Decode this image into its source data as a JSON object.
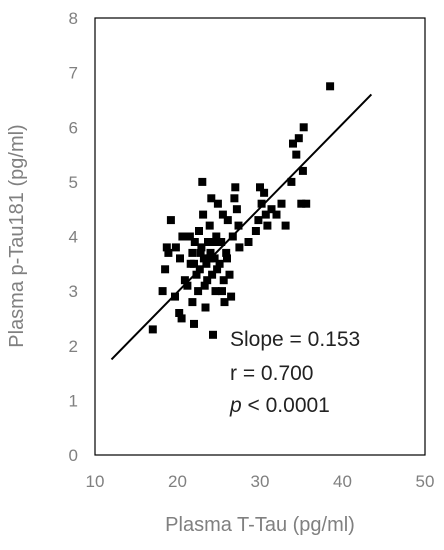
{
  "chart_data": {
    "type": "scatter",
    "title": "",
    "xlabel": "Plasma T-Tau (pg/ml)",
    "ylabel": "Plasma p-Tau181 (pg/ml)",
    "xlim": [
      10,
      50
    ],
    "ylim": [
      0,
      8
    ],
    "x_ticks": [
      "10",
      "20",
      "30",
      "40",
      "50"
    ],
    "y_ticks": [
      "0",
      "1",
      "2",
      "3",
      "4",
      "5",
      "6",
      "7",
      "8"
    ],
    "grid": false,
    "legend": "none",
    "colors": {
      "points": "#000000",
      "fit_line": "#000000",
      "axis_text": "#808080",
      "frame": "#000000"
    },
    "fit_line": {
      "x": [
        12,
        43.5
      ],
      "y": [
        1.75,
        6.6
      ],
      "slope": 0.153,
      "r": 0.7
    },
    "annotations": {
      "slope": "Slope = 0.153",
      "r": "r = 0.700",
      "p_symbol": "p",
      "p_rest": " < 0.0001"
    },
    "points": [
      [
        17,
        2.3
      ],
      [
        18.2,
        3.0
      ],
      [
        18.5,
        3.4
      ],
      [
        18.7,
        3.8
      ],
      [
        18.9,
        3.7
      ],
      [
        19.2,
        4.3
      ],
      [
        19.7,
        2.9
      ],
      [
        20.2,
        2.6
      ],
      [
        20.5,
        2.5
      ],
      [
        20.3,
        3.6
      ],
      [
        20.6,
        4.0
      ],
      [
        21.2,
        3.1
      ],
      [
        21.6,
        3.5
      ],
      [
        21.8,
        2.8
      ],
      [
        22.0,
        2.4
      ],
      [
        21.8,
        3.7
      ],
      [
        22.1,
        3.9
      ],
      [
        22.3,
        3.3
      ],
      [
        22.5,
        3.0
      ],
      [
        22.7,
        3.4
      ],
      [
        22.9,
        3.8
      ],
      [
        22.6,
        4.1
      ],
      [
        23.1,
        4.4
      ],
      [
        23.0,
        5.0
      ],
      [
        23.2,
        3.6
      ],
      [
        23.3,
        3.1
      ],
      [
        23.4,
        2.7
      ],
      [
        23.5,
        3.5
      ],
      [
        23.7,
        3.9
      ],
      [
        23.9,
        4.2
      ],
      [
        24.0,
        3.7
      ],
      [
        24.2,
        3.3
      ],
      [
        24.1,
        4.7
      ],
      [
        24.3,
        2.2
      ],
      [
        24.6,
        3.0
      ],
      [
        24.5,
        3.6
      ],
      [
        24.7,
        4.0
      ],
      [
        24.9,
        4.6
      ],
      [
        25.1,
        3.5
      ],
      [
        25.3,
        3.9
      ],
      [
        25.5,
        4.4
      ],
      [
        25.6,
        3.2
      ],
      [
        25.7,
        2.8
      ],
      [
        25.9,
        3.7
      ],
      [
        26.1,
        4.3
      ],
      [
        26.3,
        3.3
      ],
      [
        26.5,
        2.9
      ],
      [
        26.7,
        4.0
      ],
      [
        26.9,
        4.7
      ],
      [
        27.2,
        4.5
      ],
      [
        27.4,
        4.2
      ],
      [
        27.5,
        3.8
      ],
      [
        27.0,
        4.9
      ],
      [
        22.0,
        3.5
      ],
      [
        23.6,
        3.2
      ],
      [
        22.8,
        3.7
      ],
      [
        24.4,
        3.9
      ],
      [
        21.5,
        4.0
      ],
      [
        25.4,
        3.0
      ],
      [
        24.8,
        3.4
      ],
      [
        23.9,
        3.6
      ],
      [
        26.0,
        3.6
      ],
      [
        28.6,
        3.9
      ],
      [
        29.5,
        4.1
      ],
      [
        29.8,
        4.3
      ],
      [
        30.2,
        4.6
      ],
      [
        30.5,
        4.8
      ],
      [
        30.0,
        4.9
      ],
      [
        30.7,
        4.4
      ],
      [
        30.9,
        4.2
      ],
      [
        31.4,
        4.5
      ],
      [
        32.0,
        4.4
      ],
      [
        32.6,
        4.6
      ],
      [
        33.1,
        4.2
      ],
      [
        33.8,
        5.0
      ],
      [
        34.0,
        5.7
      ],
      [
        34.4,
        5.5
      ],
      [
        34.7,
        5.8
      ],
      [
        35.2,
        5.2
      ],
      [
        35.0,
        4.6
      ],
      [
        35.6,
        4.6
      ],
      [
        35.3,
        6.0
      ],
      [
        38.5,
        6.75
      ],
      [
        20.9,
        3.2
      ],
      [
        19.8,
        3.8
      ]
    ]
  }
}
